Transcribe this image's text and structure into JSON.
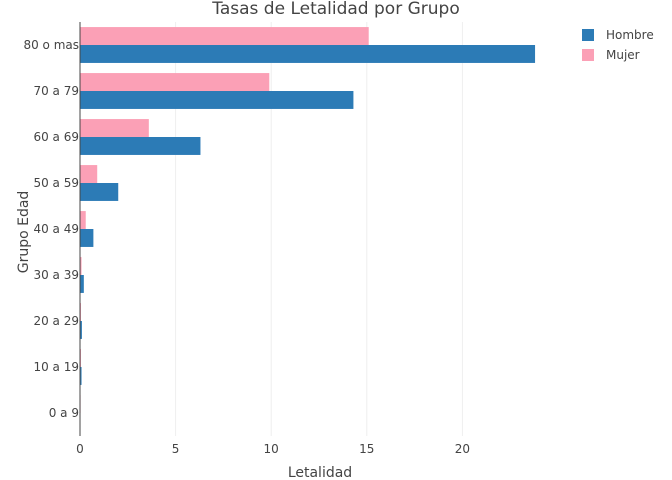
{
  "chart_data": {
    "type": "bar",
    "orientation": "horizontal",
    "title": "Tasas de Letalidad por Grupo",
    "xlabel": "Letalidad",
    "ylabel": "Grupo Edad",
    "categories": [
      "0 a 9",
      "10 a 19",
      "20 a 29",
      "30 a 39",
      "40 a 49",
      "50 a 59",
      "60 a 69",
      "70 a 79",
      "80 o mas"
    ],
    "xlim": [
      0,
      25
    ],
    "xticks": [
      0,
      5,
      10,
      15,
      20
    ],
    "xtick_labels": [
      "0",
      "5",
      "10",
      "15",
      "20"
    ],
    "grid": true,
    "legend_position": "top-right",
    "series": [
      {
        "name": "Hombre",
        "color": "#2c7bb6",
        "values": [
          0.02,
          0.08,
          0.1,
          0.2,
          0.7,
          2.0,
          6.3,
          14.3,
          23.8
        ]
      },
      {
        "name": "Mujer",
        "color": "#fba0b6",
        "values": [
          0.03,
          0.05,
          0.05,
          0.08,
          0.3,
          0.9,
          3.6,
          9.9,
          15.1
        ]
      }
    ]
  }
}
